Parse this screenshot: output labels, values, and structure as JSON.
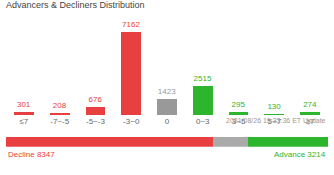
{
  "chart_data": [
    {
      "type": "bar",
      "title": "Advancers & Decliners Distribution",
      "subtitle": "2021/08/26 19:33:36 ET Update",
      "categories": [
        "≤7",
        "-7~-5",
        "-5~-3",
        "-3~0",
        "0",
        "0~3",
        "3~5",
        "5~7",
        "≥7"
      ],
      "values": [
        301,
        208,
        676,
        7162,
        1423,
        2515,
        295,
        130,
        274
      ],
      "colors": [
        "#e84040",
        "#e84040",
        "#e84040",
        "#e84040",
        "#999999",
        "#2db52d",
        "#2db52d",
        "#2db52d",
        "#2db52d"
      ],
      "ylim": [
        0,
        8400
      ],
      "data_labels": true,
      "tick_labels": "x",
      "grid": false
    },
    {
      "type": "bar",
      "orientation": "horizontal",
      "stacked": true,
      "series": [
        {
          "color": "#e84040",
          "values": [
            8347
          ]
        },
        {
          "color": "#aaaaaa",
          "values": [
            1423
          ]
        },
        {
          "color": "#2db52d",
          "values": [
            3214
          ]
        }
      ],
      "xlim": [
        0,
        12984
      ],
      "tick_labels": false,
      "grid": false,
      "annotations": [
        {
          "text": "Decline 8347",
          "color": "#e84040"
        },
        {
          "text": "Advance 3214",
          "color": "#2db52d"
        }
      ]
    }
  ]
}
